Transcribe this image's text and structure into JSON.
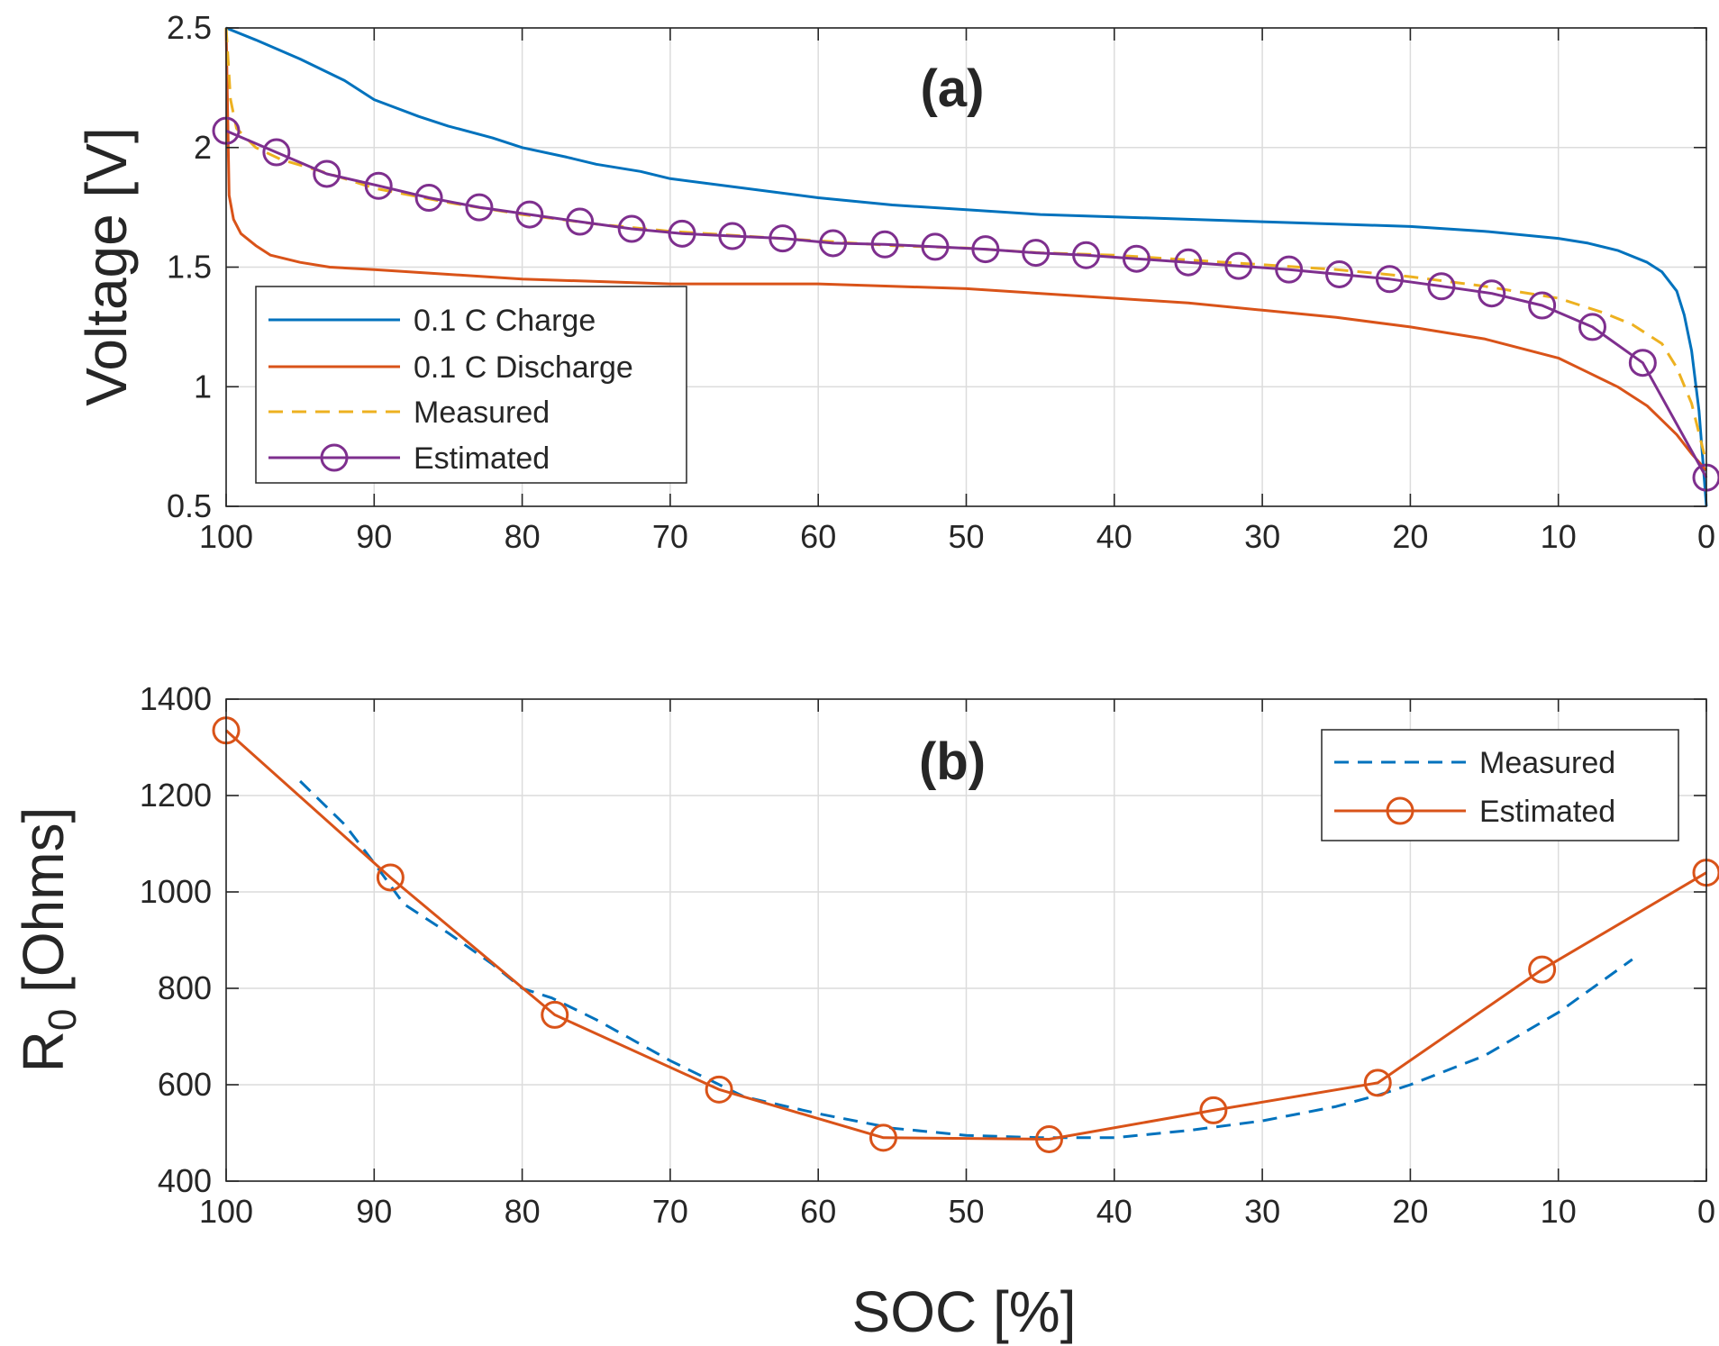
{
  "chart_data": [
    {
      "type": "line",
      "panel_label": "(a)",
      "xlabel": "",
      "ylabel": "Voltage [V]",
      "xlim": [
        100,
        0
      ],
      "ylim": [
        0.5,
        2.5
      ],
      "xticks": [
        100,
        90,
        80,
        70,
        60,
        50,
        40,
        30,
        20,
        10,
        0
      ],
      "yticks": [
        0.5,
        1,
        1.5,
        2,
        2.5
      ],
      "xticklabels": [
        "100",
        "90",
        "80",
        "70",
        "60",
        "50",
        "40",
        "30",
        "20",
        "10",
        "0"
      ],
      "yticklabels": [
        "0.5",
        "1",
        "1.5",
        "2",
        "2.5"
      ],
      "grid": true,
      "legend_position": "bottom-left",
      "series": [
        {
          "name": "0.1 C Charge",
          "color": "#0072BD",
          "style": "solid",
          "marker": "none",
          "x": [
            100,
            98,
            95,
            92,
            90,
            87,
            85,
            82,
            80,
            77,
            75,
            72,
            70,
            65,
            60,
            55,
            50,
            45,
            40,
            35,
            30,
            25,
            20,
            15,
            10,
            8,
            6,
            4,
            3,
            2,
            1.5,
            1,
            0.5,
            0
          ],
          "y": [
            2.5,
            2.45,
            2.37,
            2.28,
            2.2,
            2.13,
            2.09,
            2.04,
            2.0,
            1.96,
            1.93,
            1.9,
            1.87,
            1.83,
            1.79,
            1.76,
            1.74,
            1.72,
            1.71,
            1.7,
            1.69,
            1.68,
            1.67,
            1.65,
            1.62,
            1.6,
            1.57,
            1.52,
            1.48,
            1.4,
            1.3,
            1.15,
            0.9,
            0.5
          ]
        },
        {
          "name": "0.1 C Discharge",
          "color": "#D95319",
          "style": "solid",
          "marker": "none",
          "x": [
            100,
            99.8,
            99.5,
            99,
            98,
            97,
            95,
            93,
            90,
            85,
            80,
            75,
            70,
            65,
            60,
            55,
            50,
            45,
            40,
            35,
            30,
            25,
            20,
            15,
            10,
            8,
            6,
            4,
            3,
            2,
            1,
            0
          ],
          "y": [
            2.5,
            1.8,
            1.7,
            1.64,
            1.59,
            1.55,
            1.52,
            1.5,
            1.49,
            1.47,
            1.45,
            1.44,
            1.43,
            1.43,
            1.43,
            1.42,
            1.41,
            1.39,
            1.37,
            1.35,
            1.32,
            1.29,
            1.25,
            1.2,
            1.12,
            1.06,
            1.0,
            0.92,
            0.86,
            0.8,
            0.72,
            0.65
          ]
        },
        {
          "name": "Measured",
          "color": "#EDB120",
          "style": "dashed",
          "marker": "none",
          "x": [
            100,
            99.7,
            99.3,
            98,
            96.3,
            93,
            90,
            85,
            80,
            75,
            70,
            65,
            60,
            55,
            50,
            45,
            40,
            35,
            30,
            25,
            20,
            15,
            10,
            7,
            5,
            3,
            2,
            1,
            0
          ],
          "y": [
            2.5,
            2.2,
            2.08,
            2.0,
            1.95,
            1.89,
            1.83,
            1.77,
            1.72,
            1.68,
            1.65,
            1.63,
            1.61,
            1.59,
            1.58,
            1.56,
            1.55,
            1.53,
            1.51,
            1.49,
            1.46,
            1.42,
            1.37,
            1.31,
            1.26,
            1.18,
            1.08,
            0.93,
            0.68
          ]
        },
        {
          "name": "Estimated",
          "color": "#7E2F8E",
          "style": "solid",
          "marker": "circle",
          "x": [
            100,
            96.6,
            93.2,
            89.7,
            86.3,
            82.9,
            79.5,
            76.1,
            72.6,
            69.2,
            65.8,
            62.4,
            59,
            55.5,
            52.1,
            48.7,
            45.3,
            41.9,
            38.5,
            35,
            31.6,
            28.2,
            24.8,
            21.4,
            17.9,
            14.5,
            11.1,
            7.7,
            4.3,
            0
          ],
          "y": [
            2.07,
            1.98,
            1.89,
            1.84,
            1.79,
            1.75,
            1.72,
            1.69,
            1.66,
            1.64,
            1.63,
            1.62,
            1.6,
            1.595,
            1.585,
            1.575,
            1.56,
            1.55,
            1.535,
            1.52,
            1.505,
            1.49,
            1.47,
            1.45,
            1.42,
            1.39,
            1.34,
            1.25,
            1.1,
            0.62
          ]
        }
      ]
    },
    {
      "type": "line",
      "panel_label": "(b)",
      "xlabel": "SOC [%]",
      "ylabel_main": "R",
      "ylabel_sub": "0",
      "ylabel_unit": " [Ohms]",
      "xlim": [
        100,
        0
      ],
      "ylim": [
        400,
        1400
      ],
      "xticks": [
        100,
        90,
        80,
        70,
        60,
        50,
        40,
        30,
        20,
        10,
        0
      ],
      "yticks": [
        400,
        600,
        800,
        1000,
        1200,
        1400
      ],
      "xticklabels": [
        "100",
        "90",
        "80",
        "70",
        "60",
        "50",
        "40",
        "30",
        "20",
        "10",
        "0"
      ],
      "yticklabels": [
        "400",
        "600",
        "800",
        "1000",
        "1200",
        "1400"
      ],
      "grid": true,
      "legend_position": "top-right",
      "series": [
        {
          "name": "Measured",
          "color": "#0072BD",
          "style": "dashed",
          "marker": "none",
          "x": [
            95,
            92,
            90,
            88,
            85,
            82,
            80,
            78,
            75,
            70,
            65,
            60,
            55,
            50,
            45,
            40,
            35,
            30,
            25,
            22,
            20,
            15,
            10,
            5
          ],
          "y": [
            1230,
            1140,
            1060,
            975,
            915,
            850,
            800,
            780,
            735,
            650,
            575,
            540,
            510,
            495,
            490,
            490,
            505,
            525,
            555,
            580,
            600,
            660,
            750,
            860
          ]
        },
        {
          "name": "Estimated",
          "color": "#D95319",
          "style": "solid",
          "marker": "circle",
          "x": [
            100,
            88.9,
            77.8,
            66.7,
            55.6,
            44.4,
            33.3,
            22.2,
            11.1,
            0
          ],
          "y": [
            1335,
            1030,
            745,
            590,
            490,
            487,
            547,
            604,
            839,
            1040
          ]
        }
      ]
    }
  ]
}
